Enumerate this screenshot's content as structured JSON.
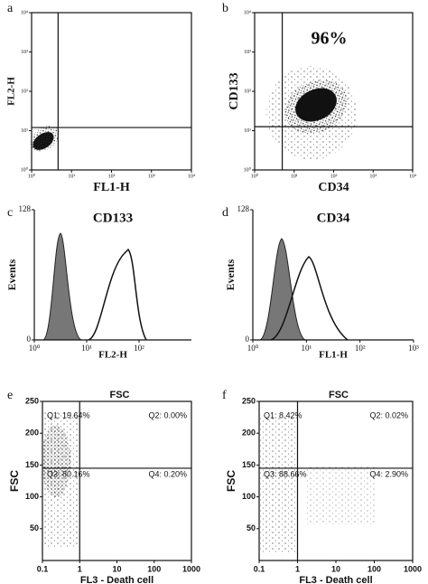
{
  "chart_data": [
    {
      "type": "scatter",
      "panel_label": "a",
      "xlabel": "FL1-H",
      "ylabel": "FL2-H",
      "xscale": "log",
      "yscale": "log",
      "xlim": [
        1,
        10000
      ],
      "ylim": [
        1,
        10000
      ],
      "xticks": [
        {
          "value": 1,
          "label": "10⁰"
        },
        {
          "value": 10,
          "label": "10¹"
        },
        {
          "value": 100,
          "label": "10²"
        },
        {
          "value": 1000,
          "label": "10³"
        },
        {
          "value": 10000,
          "label": "10⁴"
        }
      ],
      "yticks": [
        {
          "value": 1,
          "label": "10⁰"
        },
        {
          "value": 10,
          "label": "10¹"
        },
        {
          "value": 100,
          "label": "10²"
        },
        {
          "value": 1000,
          "label": "10³"
        },
        {
          "value": 10000,
          "label": "10⁴"
        }
      ],
      "gate": {
        "x": 4.6,
        "y": 12
      }
    },
    {
      "type": "scatter",
      "panel_label": "b",
      "xlabel": "CD34",
      "ylabel": "CD133",
      "xscale": "log",
      "yscale": "log",
      "xlim": [
        1,
        10000
      ],
      "ylim": [
        1,
        10000
      ],
      "xticks": [
        {
          "value": 1,
          "label": "10⁰"
        },
        {
          "value": 10,
          "label": "10¹"
        },
        {
          "value": 100,
          "label": "10²"
        },
        {
          "value": 1000,
          "label": "10³"
        },
        {
          "value": 10000,
          "label": "10⁴"
        }
      ],
      "yticks": [
        {
          "value": 1,
          "label": "10⁰"
        },
        {
          "value": 10,
          "label": "10¹"
        },
        {
          "value": 100,
          "label": "10²"
        },
        {
          "value": 1000,
          "label": "10³"
        },
        {
          "value": 10000,
          "label": "10⁴"
        }
      ],
      "gate": {
        "x": 5,
        "y": 12.6
      },
      "annotation": "96%"
    },
    {
      "type": "histogram",
      "panel_label": "c",
      "title": "CD133",
      "xlabel": "FL2-H",
      "ylabel": "Events",
      "xscale": "log",
      "xlim": [
        1,
        1000
      ],
      "ylim": [
        0,
        128
      ],
      "xticks": [
        {
          "value": 1,
          "label": "10⁰"
        },
        {
          "value": 10,
          "label": "10¹"
        },
        {
          "value": 100,
          "label": "10²"
        }
      ],
      "yticks": [
        0,
        128
      ]
    },
    {
      "type": "histogram",
      "panel_label": "d",
      "title": "CD34",
      "xlabel": "FL1-H",
      "ylabel": "Events",
      "xscale": "log",
      "xlim": [
        1,
        1000
      ],
      "ylim": [
        0,
        128
      ],
      "xticks": [
        {
          "value": 1,
          "label": "10⁰"
        },
        {
          "value": 10,
          "label": "10¹"
        },
        {
          "value": 100,
          "label": "10²"
        },
        {
          "value": 1000,
          "label": "10³"
        }
      ],
      "yticks": [
        0,
        128
      ]
    },
    {
      "type": "scatter",
      "panel_label": "e",
      "title": "FSC",
      "xlabel": "FL3  - Death cell",
      "ylabel": "FSC",
      "xscale": "log",
      "xlim": [
        0.1,
        1000
      ],
      "ylim": [
        0,
        250
      ],
      "xticks": [
        0.1,
        1,
        10,
        100,
        1000
      ],
      "yticks": [
        50,
        100,
        150,
        200,
        250
      ],
      "gate": {
        "x": 1,
        "y": 145
      },
      "quadrants": [
        "Q1: 19.64%",
        "Q2: 0.00%",
        "Q3: 80.16%",
        "Q4: 0.20%"
      ]
    },
    {
      "type": "scatter",
      "panel_label": "f",
      "title": "FSC",
      "xlabel": "FL3  - Death cell",
      "ylabel": "FSC",
      "xscale": "log",
      "xlim": [
        0.1,
        1000
      ],
      "ylim": [
        0,
        250
      ],
      "xticks": [
        0.1,
        1,
        10,
        100,
        1000
      ],
      "yticks": [
        50,
        100,
        150,
        200,
        250
      ],
      "gate": {
        "x": 1,
        "y": 145
      },
      "quadrants": [
        "Q1: 8.42%",
        "Q2: 0.02%",
        "Q3: 88.66%",
        "Q4: 2.90%"
      ]
    }
  ]
}
